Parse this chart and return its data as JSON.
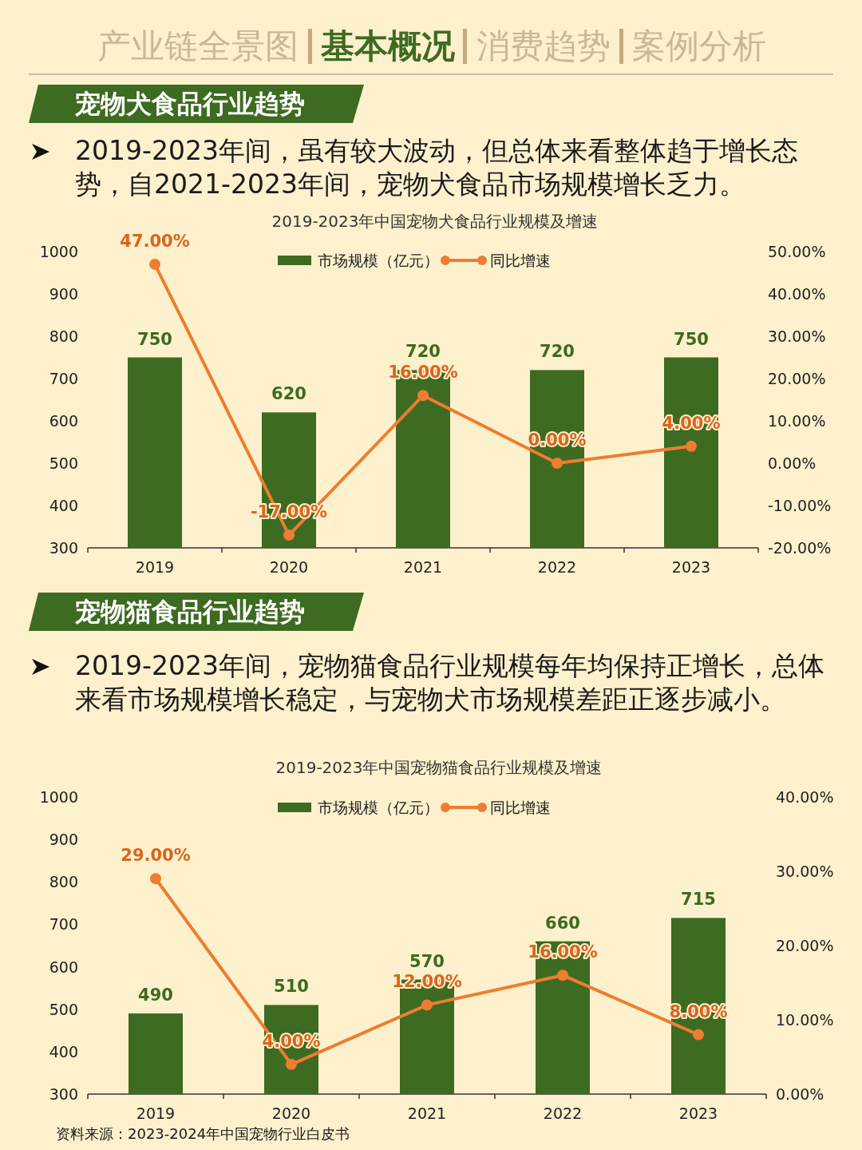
{
  "chart_data": [
    {
      "type": "bar",
      "title": "2019-2023年中国宠物犬食品行业规模及增速",
      "categories": [
        "2019",
        "2020",
        "2021",
        "2022",
        "2023"
      ],
      "series": [
        {
          "name": "市场规模（亿元）",
          "color": "#3d6b21",
          "values": [
            750,
            620,
            720,
            720,
            750
          ],
          "value_labels": [
            "750",
            "620",
            "720",
            "720",
            "750"
          ]
        },
        {
          "name": "同比增速",
          "type": "line",
          "axis": "y2",
          "color": "#ed7d31",
          "marker": "circle",
          "values": [
            47,
            -17,
            16,
            0,
            4
          ],
          "value_labels": [
            "47.00%",
            "-17.00%",
            "16.00%",
            "0.00%",
            "4.00%"
          ]
        }
      ],
      "ylim": [
        300,
        1000
      ],
      "yticks": [
        300,
        400,
        500,
        600,
        700,
        800,
        900,
        1000
      ],
      "y2lim": [
        -20,
        50
      ],
      "y2ticks": [
        {
          "value": -20,
          "label": "-20.00%"
        },
        {
          "value": -10,
          "label": "-10.00%"
        },
        {
          "value": 0,
          "label": "0.00%"
        },
        {
          "value": 10,
          "label": "10.00%"
        },
        {
          "value": 20,
          "label": "20.00%"
        },
        {
          "value": 30,
          "label": "30.00%"
        },
        {
          "value": 40,
          "label": "40.00%"
        },
        {
          "value": 50,
          "label": "50.00%"
        }
      ],
      "legend": "top",
      "grid": false,
      "annotations": [
        "产业链全景图",
        "基本概况",
        "消费趋势",
        "案例分析",
        "宠物犬食品行业趋势",
        "2019-2023年间，虽有较大波动，但总体来看整体趋于增长态势，自2021-2023年间，宠物犬食品市场规模增长乏力。"
      ]
    },
    {
      "type": "bar",
      "title": "2019-2023年中国宠物猫食品行业规模及增速",
      "categories": [
        "2019",
        "2020",
        "2021",
        "2022",
        "2023"
      ],
      "series": [
        {
          "name": "市场规模（亿元）",
          "color": "#3d6b21",
          "values": [
            490,
            510,
            570,
            660,
            715
          ],
          "value_labels": [
            "490",
            "510",
            "570",
            "660",
            "715"
          ]
        },
        {
          "name": "同比增速",
          "type": "line",
          "axis": "y2",
          "color": "#ed7d31",
          "marker": "circle",
          "values": [
            29,
            4,
            12,
            16,
            8
          ],
          "value_labels": [
            "29.00%",
            "4.00%",
            "12.00%",
            "16.00%",
            "8.00%"
          ]
        }
      ],
      "ylim": [
        300,
        1000
      ],
      "yticks": [
        300,
        400,
        500,
        600,
        700,
        800,
        900,
        1000
      ],
      "y2lim": [
        0,
        40
      ],
      "y2ticks": [
        {
          "value": 0,
          "label": "0.00%"
        },
        {
          "value": 10,
          "label": "10.00%"
        },
        {
          "value": 20,
          "label": "20.00%"
        },
        {
          "value": 30,
          "label": "30.00%"
        },
        {
          "value": 40,
          "label": "40.00%"
        }
      ],
      "legend": "top",
      "grid": false,
      "annotations": [
        "宠物猫食品行业趋势",
        "2019-2023年间，宠物猫食品行业规模每年均保持正增长，总体来看市场规模增长稳定，与宠物犬市场规模差距正逐步减小。",
        "资料来源：2023-2024年中国宠物行业白皮书"
      ]
    }
  ]
}
